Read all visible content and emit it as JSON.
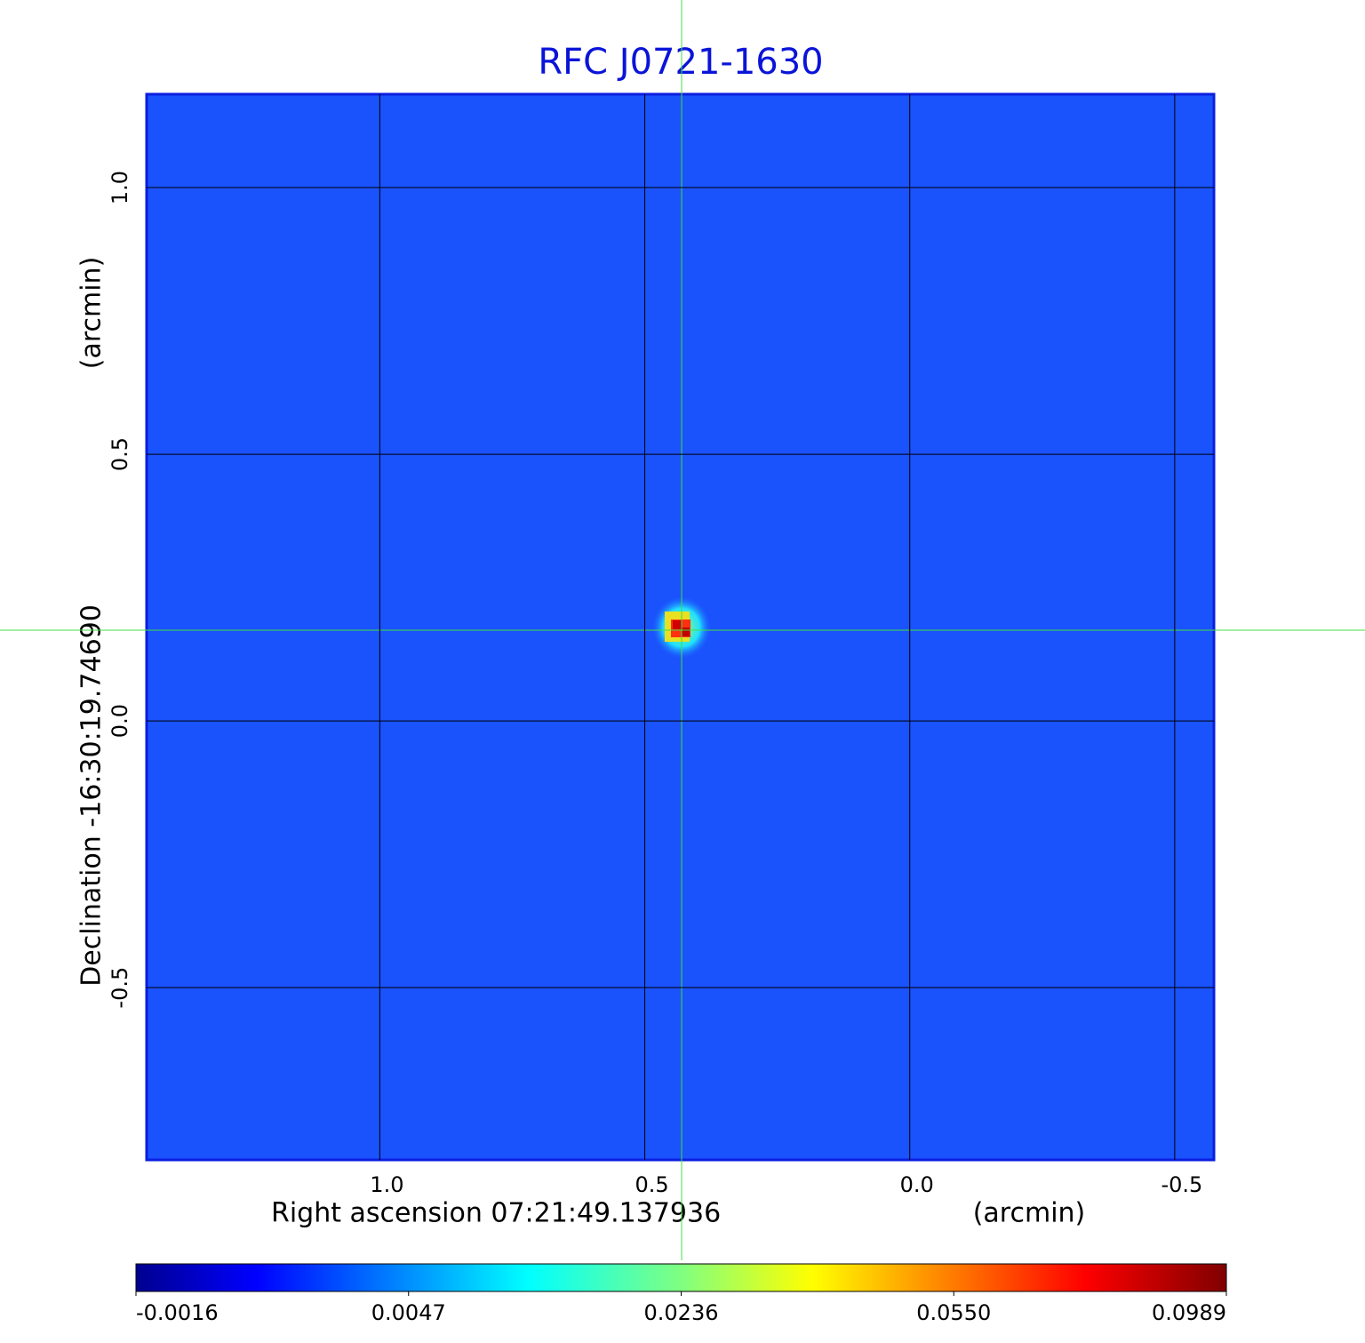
{
  "chart_data": {
    "type": "image",
    "title": "RFC J0721-1630",
    "xlabel": "Right ascension  07:21:49.137936",
    "xunit": "(arcmin)",
    "ylabel": "Declination  -16:30:19.74690",
    "yunit": "(arcmin)",
    "xlim": [
      1.44,
      -0.574
    ],
    "ylim": [
      -0.823,
      1.175
    ],
    "xticks": [
      {
        "value": 1,
        "label": "1.0"
      },
      0.5,
      {
        "value": 0,
        "label": "0.0"
      },
      -0.5
    ],
    "yticks": [
      {
        "value": 1,
        "label": "1.0"
      },
      0.5,
      {
        "value": 0,
        "label": "0.0"
      },
      -0.5
    ],
    "grid": true,
    "colorbar_ticks": [
      -0.0016,
      0.0047,
      0.0236,
      {
        "value": 0.055,
        "label": "0.0550"
      },
      0.0989
    ]
  }
}
